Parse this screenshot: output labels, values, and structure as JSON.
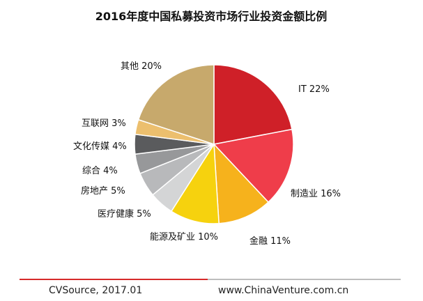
{
  "chart_data": {
    "type": "pie",
    "title": "2016年度中国私募投资市场行业投资金额比例",
    "slices": [
      {
        "label": "IT",
        "value": 22,
        "color": "#cf2028"
      },
      {
        "label": "制造业",
        "value": 16,
        "color": "#ef3d4a"
      },
      {
        "label": "金融",
        "value": 11,
        "color": "#f6b21c"
      },
      {
        "label": "能源及矿业",
        "value": 10,
        "color": "#f6d20e"
      },
      {
        "label": "医疗健康",
        "value": 5,
        "color": "#d4d5d6"
      },
      {
        "label": "房地产",
        "value": 5,
        "color": "#b8b9bb"
      },
      {
        "label": "综合",
        "value": 4,
        "color": "#97989a"
      },
      {
        "label": "文化传媒",
        "value": 4,
        "color": "#5a5b5d"
      },
      {
        "label": "互联网",
        "value": 3,
        "color": "#ecbf6e"
      },
      {
        "label": "其他",
        "value": 20,
        "color": "#c7a96c"
      }
    ],
    "slice_labels": [
      "IT 22%",
      "制造业 16%",
      "金融 11%",
      "能源及矿业 10%",
      "医疗健康 5%",
      "房地产 5%",
      "综合 4%",
      "文化传媒 4%",
      "互联网 3%",
      "其他 20%"
    ]
  },
  "footer": {
    "source": "CVSource, 2017.01",
    "website": "www.ChinaVenture.com.cn",
    "line_colors": {
      "left": "#d62a2a",
      "right": "#bdbdbd"
    }
  }
}
